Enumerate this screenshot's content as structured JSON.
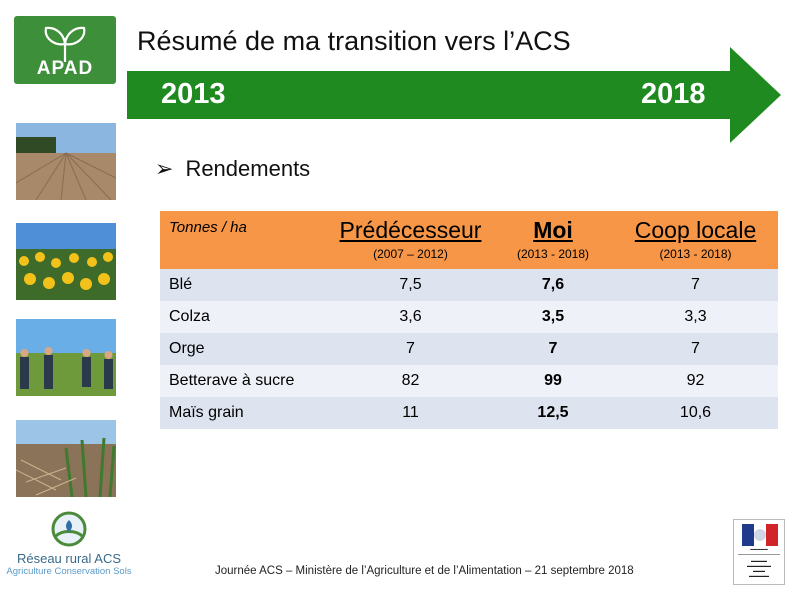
{
  "brand": {
    "apad_logo_text": "APAD",
    "apad_color": "#3d8f3a"
  },
  "slide": {
    "title": "Résumé de ma transition vers l’ACS"
  },
  "timeline": {
    "start": "2013",
    "end": "2018",
    "arrow_color": "#1f8a1f"
  },
  "section": {
    "bullet": "➢",
    "heading": "Rendements"
  },
  "table": {
    "unit_header": "Tonnes / ha",
    "header_color": "#f79646",
    "columns": [
      {
        "title": "Prédécesseur",
        "period": "(2007 – 2012)"
      },
      {
        "title": "Moi",
        "period": "(2013 - 2018)"
      },
      {
        "title": "Coop locale",
        "period": "(2013 - 2018)"
      }
    ],
    "rows": [
      {
        "crop": "Blé",
        "predecesseur": "7,5",
        "moi": "7,6",
        "coop": "7"
      },
      {
        "crop": "Colza",
        "predecesseur": "3,6",
        "moi": "3,5",
        "coop": "3,3"
      },
      {
        "crop": "Orge",
        "predecesseur": "7",
        "moi": "7",
        "coop": "7"
      },
      {
        "crop": "Betterave à sucre",
        "predecesseur": "82",
        "moi": "99",
        "coop": "92"
      },
      {
        "crop": "Maïs grain",
        "predecesseur": "11",
        "moi": "12,5",
        "coop": "10,6"
      }
    ]
  },
  "photos": [
    "field-photo",
    "sunflower-photo",
    "people-in-field-photo",
    "crop-residue-photo"
  ],
  "bottom_logo": {
    "name": "Réseau rural ACS",
    "subtitle": "Agriculture Conservation Sols"
  },
  "footer": {
    "text": "Journée ACS – Ministère de l’Agriculture et de l’Alimentation – 21 septembre 2018"
  }
}
